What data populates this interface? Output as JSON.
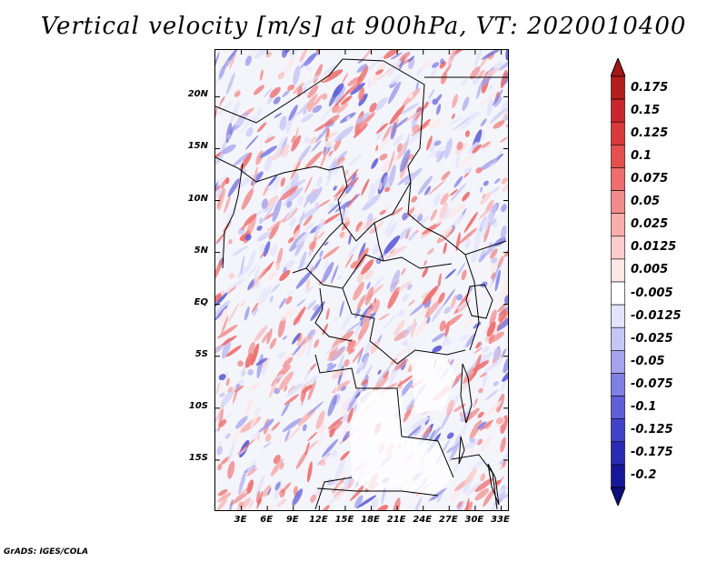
{
  "title": "Vertical velocity [m/s] at 900hPa, VT: 2020010400",
  "footer": "GrADS: IGES/COLA",
  "map": {
    "lat_labels": [
      {
        "text": "20N",
        "lat": 20
      },
      {
        "text": "15N",
        "lat": 15
      },
      {
        "text": "10N",
        "lat": 10
      },
      {
        "text": "5N",
        "lat": 5
      },
      {
        "text": "EQ",
        "lat": 0
      },
      {
        "text": "5S",
        "lat": -5
      },
      {
        "text": "10S",
        "lat": -10
      },
      {
        "text": "15S",
        "lat": -15
      }
    ],
    "lon_labels": [
      {
        "text": "3E",
        "lon": 3
      },
      {
        "text": "6E",
        "lon": 6
      },
      {
        "text": "9E",
        "lon": 9
      },
      {
        "text": "12E",
        "lon": 12
      },
      {
        "text": "15E",
        "lon": 15
      },
      {
        "text": "18E",
        "lon": 18
      },
      {
        "text": "21E",
        "lon": 21
      },
      {
        "text": "24E",
        "lon": 24
      },
      {
        "text": "27E",
        "lon": 27
      },
      {
        "text": "30E",
        "lon": 30
      },
      {
        "text": "33E",
        "lon": 33
      }
    ],
    "lat_range": [
      -20,
      24.5
    ],
    "lon_range": [
      0,
      34
    ]
  },
  "colorbar": {
    "levels": [
      {
        "label": "0.175",
        "color": "#b41e1e"
      },
      {
        "label": "0.15",
        "color": "#c8282d"
      },
      {
        "label": "0.125",
        "color": "#d9383c"
      },
      {
        "label": "0.1",
        "color": "#e5504f"
      },
      {
        "label": "0.075",
        "color": "#ed6e6c"
      },
      {
        "label": "0.05",
        "color": "#f28c8a"
      },
      {
        "label": "0.025",
        "color": "#f7aeac"
      },
      {
        "label": "0.0125",
        "color": "#fbcdcc"
      },
      {
        "label": "0.005",
        "color": "#fde7e7"
      },
      {
        "label": "-0.005",
        "color": "#ffffff"
      },
      {
        "label": "-0.0125",
        "color": "#e3e3fb"
      },
      {
        "label": "-0.025",
        "color": "#c6c6f5"
      },
      {
        "label": "-0.05",
        "color": "#a3a3ee"
      },
      {
        "label": "-0.075",
        "color": "#8080e4"
      },
      {
        "label": "-0.1",
        "color": "#5f5fd8"
      },
      {
        "label": "-0.125",
        "color": "#4242c8"
      },
      {
        "label": "-0.175",
        "color": "#2a2ab2"
      },
      {
        "label": "-0.2",
        "color": "#17179a"
      }
    ],
    "top_arrow_color": "#a01818",
    "bottom_arrow_color": "#0d0d82"
  }
}
